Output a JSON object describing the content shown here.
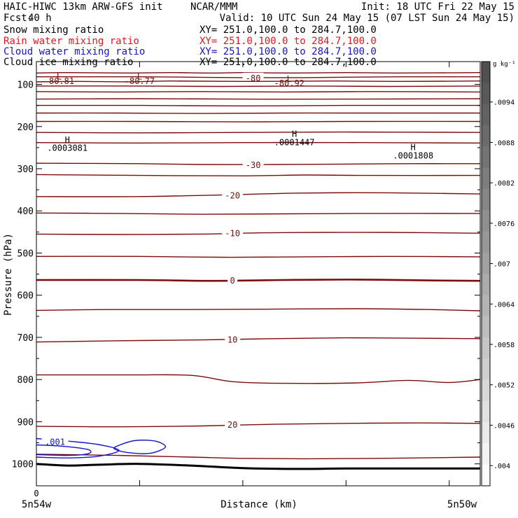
{
  "header": {
    "model": "HAIC-HIWC 13km ARW-GFS init",
    "org": "NCAR/MMM",
    "init": "Init: 18 UTC Fri 22 May 15",
    "fcst_label": "Fcst:",
    "fcst_value": "40 h",
    "valid": "Valid: 10 UTC Sun 24 May 15 (07 LST Sun 24 May 15)"
  },
  "fields": [
    {
      "label": "Snow mixing ratio",
      "xy": "XY= 251.0,100.0 to 284.7,100.0",
      "color": "#000000"
    },
    {
      "label": "Rain water mixing ratio",
      "xy": "XY= 251.0,100.0 to 284.7,100.0",
      "color": "#e8141e"
    },
    {
      "label": "Cloud water mixing ratio",
      "xy": "XY= 251.0,100.0 to 284.7,100.0",
      "color": "#1414c8"
    },
    {
      "label": "Cloud ice mixing ratio",
      "xy": "XY= 251.0,100.0 to 284.7,100.0",
      "color": "#000000"
    }
  ],
  "colors": {
    "isotherm": "#7a0c0c",
    "cloud_water": "#1414c8",
    "terrain": "#000000"
  },
  "chart_data": {
    "type": "contour-cross-section",
    "xlabel": "Distance (km)",
    "ylabel": "Pressure (hPa)",
    "x_ticks": [
      {
        "x": 0,
        "label": "0"
      },
      {
        "x": 1,
        "label": ""
      },
      {
        "x": 2,
        "label": ""
      },
      {
        "x": 3,
        "label": ""
      },
      {
        "x": 4,
        "label": ""
      }
    ],
    "x_end_labels": {
      "left": "5n54w",
      "right": "5n50w"
    },
    "xlim": [
      0,
      4.3
    ],
    "ylim": [
      1052,
      46
    ],
    "y_ticks": [
      100,
      200,
      300,
      400,
      500,
      600,
      700,
      800,
      900,
      1000
    ],
    "colorbar": {
      "unit": "g kg⁻¹",
      "labels": [
        ".0094",
        ".0088",
        ".0082",
        ".0076",
        ".007",
        ".0064",
        ".0058",
        ".0052",
        ".0046",
        ".004"
      ],
      "label_values": [
        0.0094,
        0.0088,
        0.0082,
        0.0076,
        0.007,
        0.0064,
        0.0058,
        0.0052,
        0.0046,
        0.004
      ],
      "range": [
        0.0037,
        0.01
      ],
      "cells": 20
    },
    "isotherms": [
      {
        "label": "",
        "points": [
          [
            0.0,
            73
          ],
          [
            0.3,
            72
          ],
          [
            0.9,
            73
          ],
          [
            1.3,
            72
          ],
          [
            1.7,
            73
          ],
          [
            2.0,
            72
          ],
          [
            2.5,
            73
          ],
          [
            3.0,
            72
          ],
          [
            3.5,
            73
          ],
          [
            4.3,
            72
          ]
        ]
      },
      {
        "label": "-80",
        "label_at": [
          2.1,
          84
        ],
        "points": [
          [
            0.0,
            82
          ],
          [
            1.0,
            82
          ],
          [
            1.5,
            83
          ],
          [
            2.0,
            84
          ],
          [
            2.6,
            84
          ],
          [
            3.0,
            83
          ],
          [
            3.5,
            82
          ],
          [
            4.3,
            82
          ]
        ]
      },
      {
        "label": "",
        "points": [
          [
            0.0,
            94
          ],
          [
            0.4,
            93
          ],
          [
            0.9,
            94
          ],
          [
            1.3,
            92
          ],
          [
            2.0,
            93
          ],
          [
            2.9,
            92
          ],
          [
            3.5,
            93
          ],
          [
            4.3,
            92
          ]
        ]
      },
      {
        "label": "",
        "points": [
          [
            0.0,
            104
          ],
          [
            1.0,
            104
          ],
          [
            1.8,
            105
          ],
          [
            2.6,
            104
          ],
          [
            3.4,
            105
          ],
          [
            4.3,
            104
          ]
        ]
      },
      {
        "label": "",
        "points": [
          [
            0.0,
            117
          ],
          [
            0.8,
            118
          ],
          [
            1.6,
            117
          ],
          [
            2.4,
            118
          ],
          [
            3.2,
            117
          ],
          [
            4.3,
            118
          ]
        ]
      },
      {
        "label": "",
        "points": [
          [
            0.0,
            135
          ],
          [
            1.0,
            134
          ],
          [
            2.0,
            135
          ],
          [
            3.0,
            135
          ],
          [
            4.3,
            134
          ]
        ]
      },
      {
        "label": "",
        "points": [
          [
            0.0,
            150
          ],
          [
            1.0,
            150
          ],
          [
            2.0,
            151
          ],
          [
            3.0,
            150
          ],
          [
            4.3,
            150
          ]
        ]
      },
      {
        "label": "",
        "points": [
          [
            0.0,
            168
          ],
          [
            0.8,
            168
          ],
          [
            1.6,
            169
          ],
          [
            2.4,
            168
          ],
          [
            3.2,
            168
          ],
          [
            4.3,
            168
          ]
        ]
      },
      {
        "label": "",
        "points": [
          [
            0.0,
            188
          ],
          [
            1.0,
            188
          ],
          [
            2.0,
            189
          ],
          [
            3.0,
            188
          ],
          [
            4.3,
            188
          ]
        ]
      },
      {
        "label": "",
        "points": [
          [
            0.0,
            214
          ],
          [
            1.0,
            215
          ],
          [
            2.0,
            214
          ],
          [
            3.0,
            213
          ],
          [
            4.3,
            214
          ]
        ]
      },
      {
        "label": "",
        "points": [
          [
            0.0,
            238
          ],
          [
            1.0,
            239
          ],
          [
            2.0,
            238
          ],
          [
            3.0,
            238
          ],
          [
            4.3,
            239
          ]
        ]
      },
      {
        "label": "-30",
        "label_at": [
          2.1,
          290
        ],
        "points": [
          [
            0.0,
            287
          ],
          [
            1.0,
            288
          ],
          [
            1.6,
            290
          ],
          [
            2.3,
            290
          ],
          [
            3.0,
            289
          ],
          [
            3.6,
            288
          ],
          [
            4.3,
            288
          ]
        ]
      },
      {
        "label": "",
        "points": [
          [
            0.0,
            314
          ],
          [
            1.0,
            316
          ],
          [
            2.0,
            317
          ],
          [
            2.6,
            315
          ],
          [
            3.2,
            316
          ],
          [
            4.3,
            316
          ]
        ]
      },
      {
        "label": "-20",
        "label_at": [
          1.9,
          362
        ],
        "points": [
          [
            0.0,
            366
          ],
          [
            1.0,
            366
          ],
          [
            2.0,
            361
          ],
          [
            2.5,
            358
          ],
          [
            3.1,
            357
          ],
          [
            3.7,
            358
          ],
          [
            4.3,
            360
          ]
        ]
      },
      {
        "label": "",
        "points": [
          [
            0.0,
            405
          ],
          [
            0.8,
            406
          ],
          [
            1.6,
            408
          ],
          [
            2.4,
            407
          ],
          [
            3.2,
            406
          ],
          [
            4.3,
            406
          ]
        ]
      },
      {
        "label": "-10",
        "label_at": [
          1.9,
          452
        ],
        "points": [
          [
            0.0,
            455
          ],
          [
            0.8,
            456
          ],
          [
            1.6,
            455
          ],
          [
            2.2,
            452
          ],
          [
            2.8,
            451
          ],
          [
            3.4,
            451
          ],
          [
            4.3,
            453
          ]
        ]
      },
      {
        "label": "",
        "points": [
          [
            0.0,
            508
          ],
          [
            1.0,
            508
          ],
          [
            1.8,
            510
          ],
          [
            2.6,
            509
          ],
          [
            3.4,
            508
          ],
          [
            4.3,
            509
          ]
        ]
      },
      {
        "label": "0",
        "label_at": [
          1.9,
          564
        ],
        "bold": true,
        "points": [
          [
            0.0,
            564
          ],
          [
            1.0,
            564
          ],
          [
            1.7,
            566
          ],
          [
            2.4,
            564
          ],
          [
            3.1,
            563
          ],
          [
            3.8,
            565
          ],
          [
            4.3,
            566
          ]
        ]
      },
      {
        "label": "",
        "points": [
          [
            0.0,
            636
          ],
          [
            0.7,
            634
          ],
          [
            1.5,
            634
          ],
          [
            2.3,
            633
          ],
          [
            3.1,
            632
          ],
          [
            3.8,
            634
          ],
          [
            4.3,
            637
          ]
        ]
      },
      {
        "label": "10",
        "label_at": [
          1.9,
          704
        ],
        "points": [
          [
            0.0,
            711
          ],
          [
            0.8,
            708
          ],
          [
            1.6,
            706
          ],
          [
            2.3,
            703
          ],
          [
            3.0,
            701
          ],
          [
            3.7,
            702
          ],
          [
            4.3,
            703
          ]
        ]
      },
      {
        "label": "",
        "points": [
          [
            0.0,
            789
          ],
          [
            0.9,
            789
          ],
          [
            1.5,
            790
          ],
          [
            1.9,
            805
          ],
          [
            2.4,
            809
          ],
          [
            3.1,
            808
          ],
          [
            3.6,
            802
          ],
          [
            4.0,
            807
          ],
          [
            4.3,
            800
          ]
        ]
      },
      {
        "label": "20",
        "label_at": [
          1.9,
          906
        ],
        "points": [
          [
            0.0,
            911
          ],
          [
            0.8,
            912
          ],
          [
            1.6,
            910
          ],
          [
            2.3,
            906
          ],
          [
            3.0,
            904
          ],
          [
            3.7,
            903
          ],
          [
            4.3,
            904
          ]
        ]
      },
      {
        "label": "",
        "points": [
          [
            0.0,
            977
          ],
          [
            0.8,
            980
          ],
          [
            1.5,
            984
          ],
          [
            2.0,
            987
          ],
          [
            2.6,
            988
          ],
          [
            3.3,
            987
          ],
          [
            4.0,
            985
          ],
          [
            4.3,
            984
          ]
        ]
      }
    ],
    "cloud_water": [
      {
        "label": ".001",
        "label_at": [
          0.18,
          947
        ],
        "points": [
          [
            0.0,
            940
          ],
          [
            0.3,
            946
          ],
          [
            0.6,
            954
          ],
          [
            0.8,
            968
          ],
          [
            0.6,
            982
          ],
          [
            0.3,
            986
          ],
          [
            0.0,
            984
          ]
        ]
      },
      {
        "label": "",
        "points": [
          [
            0.0,
            955
          ],
          [
            0.25,
            958
          ],
          [
            0.5,
            966
          ],
          [
            0.5,
            976
          ],
          [
            0.3,
            980
          ],
          [
            0.0,
            978
          ]
        ]
      },
      {
        "label": "",
        "closed": true,
        "points": [
          [
            0.78,
            958
          ],
          [
            0.95,
            945
          ],
          [
            1.15,
            946
          ],
          [
            1.25,
            960
          ],
          [
            1.1,
            975
          ],
          [
            0.88,
            973
          ],
          [
            0.76,
            965
          ]
        ]
      }
    ],
    "terrain": [
      [
        0.0,
        1000
      ],
      [
        0.3,
        1004
      ],
      [
        0.6,
        1002
      ],
      [
        1.0,
        1000
      ],
      [
        1.5,
        1004
      ],
      [
        2.0,
        1010
      ],
      [
        2.5,
        1012
      ],
      [
        3.0,
        1011
      ],
      [
        3.5,
        1011
      ],
      [
        4.3,
        1011
      ]
    ],
    "annotations": [
      {
        "symbol": "L",
        "value": "-80.81",
        "x": 0.22,
        "y": 80,
        "vy": 91
      },
      {
        "symbol": "L",
        "value": "-80.77",
        "x": 1.0,
        "y": 80,
        "vy": 91
      },
      {
        "symbol": "L",
        "value": "-80.92",
        "x": 2.45,
        "y": 86,
        "vy": 96
      },
      {
        "symbol": "H",
        "value": ".0003081",
        "x": 0.3,
        "y": 230,
        "vy": 249
      },
      {
        "symbol": "H",
        "value": ".0001447",
        "x": 2.5,
        "y": 216,
        "vy": 236
      },
      {
        "symbol": "H",
        "value": ".0001808",
        "x": 3.65,
        "y": 248,
        "vy": 268
      }
    ]
  }
}
